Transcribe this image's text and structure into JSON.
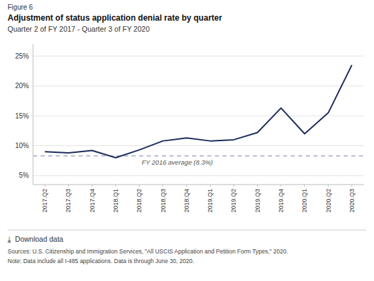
{
  "chart_data": {
    "type": "line",
    "figure_label": "Figure 6",
    "title": "Adjustment of status application denial rate by quarter",
    "subtitle": "Quarter 2 of FY 2017 - Quarter 3 of FY 2020",
    "categories": [
      "2017.Q2",
      "2017.Q3",
      "2017.Q4",
      "2018.Q1",
      "2018.Q2",
      "2018.Q3",
      "2018.Q4",
      "2019.Q1",
      "2019.Q2",
      "2019.Q3",
      "2019.Q4",
      "2020.Q1",
      "2020.Q2",
      "2020.Q3"
    ],
    "values": [
      9.0,
      8.8,
      9.2,
      8.0,
      9.3,
      10.8,
      11.3,
      10.8,
      11.0,
      12.2,
      16.3,
      12.0,
      15.5,
      23.5
    ],
    "color": "#1c2c5b",
    "reference_line": {
      "value": 8.3,
      "label": "FY 2016 average (8.3%)",
      "color": "#9999bb"
    },
    "ylim": [
      3.5,
      27
    ],
    "yticks": [
      {
        "value": 5,
        "label": "5%"
      },
      {
        "value": 10,
        "label": "10%"
      },
      {
        "value": 15,
        "label": "15%"
      },
      {
        "value": 20,
        "label": "20%"
      },
      {
        "value": 25,
        "label": "25%"
      }
    ],
    "grid": true,
    "download_text": "⤓  Download data",
    "source": "Sources: U.S. Citizenship and Immigration Services, \"All USCIS Application and Petition Form Types,\" 2020.",
    "note": "Note: Data include all I-485 applications. Data is through June 30, 2020."
  }
}
